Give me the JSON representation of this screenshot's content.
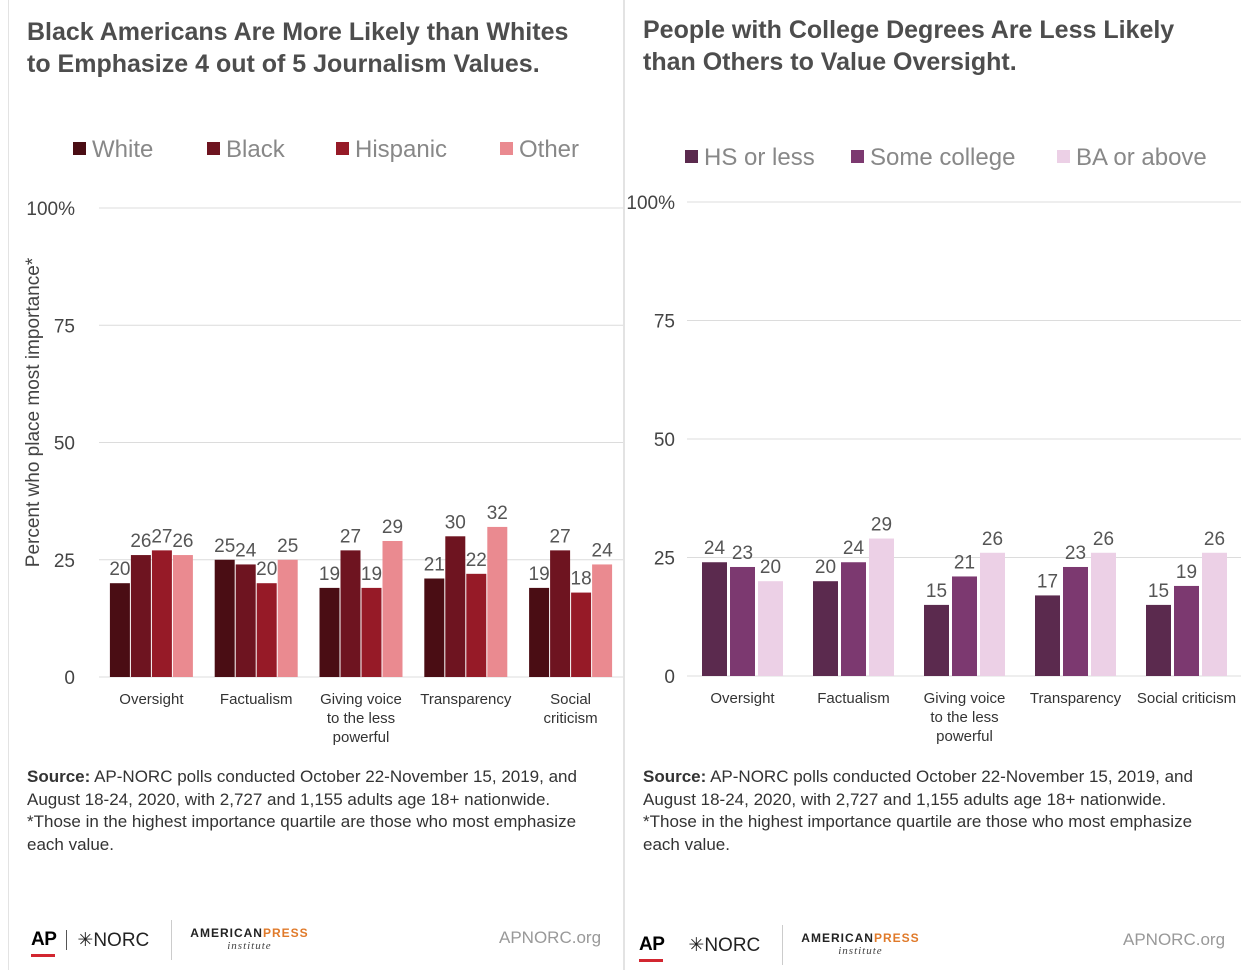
{
  "charts": [
    {
      "title_line1": "Black Americans Are More Likely than Whites",
      "title_line2": "to Emphasize 4 out of 5 Journalism Values.",
      "source_label": "Source:",
      "source_text": " AP-NORC polls conducted October 22-November 15, 2019, and August 18-24, 2020, with 2,727 and 1,155 adults age 18+ nationwide.",
      "footnote": "*Those in the highest importance quartile are those who most emphasize each value.",
      "footer": {
        "ap": "AP",
        "norc": "NORC",
        "api_1": "AMERICAN",
        "api_2": "PRESS",
        "api_3": "institute",
        "url": "APNORC.org"
      }
    },
    {
      "title_line1": "People with College Degrees Are Less Likely",
      "title_line2": "than Others to Value Oversight.",
      "source_label": "Source:",
      "source_text": " AP-NORC polls conducted October 22-November 15, 2019, and August 18-24, 2020, with 2,727 and 1,155 adults age 18+ nationwide.",
      "footnote": "*Those in the highest importance quartile are those who most emphasize each value.",
      "footer": {
        "ap": "AP",
        "norc": "NORC",
        "api_1": "AMERICAN",
        "api_2": "PRESS",
        "api_3": "institute",
        "url": "APNORC.org"
      }
    }
  ],
  "chart_data": [
    {
      "type": "bar",
      "title": "Black Americans Are More Likely than Whites to Emphasize 4 out of 5 Journalism Values.",
      "categories": [
        [
          "Oversight"
        ],
        [
          "Factualism"
        ],
        [
          "Giving voice",
          "to the less",
          "powerful"
        ],
        [
          "Transparency"
        ],
        [
          "Social",
          "criticism"
        ]
      ],
      "series": [
        {
          "name": "White",
          "color": "#4a0d14",
          "values": [
            20,
            25,
            19,
            21,
            19
          ]
        },
        {
          "name": "Black",
          "color": "#6e1420",
          "values": [
            26,
            24,
            27,
            30,
            27
          ]
        },
        {
          "name": "Hispanic",
          "color": "#961a27",
          "values": [
            27,
            20,
            19,
            22,
            18
          ]
        },
        {
          "name": "Other",
          "color": "#ea8a90",
          "values": [
            26,
            25,
            29,
            32,
            24
          ]
        }
      ],
      "ylabel": "Percent who place most importance*",
      "ylim": [
        0,
        100
      ],
      "yticks": [
        "0",
        "25",
        "50",
        "75",
        "100%"
      ],
      "legend": "top",
      "grid": true
    },
    {
      "type": "bar",
      "title": "People with College Degrees Are Less Likely than Others to Value Oversight.",
      "categories": [
        [
          "Oversight"
        ],
        [
          "Factualism"
        ],
        [
          "Giving voice",
          "to the less",
          "powerful"
        ],
        [
          "Transparency"
        ],
        [
          "Social criticism"
        ]
      ],
      "series": [
        {
          "name": "HS or less",
          "color": "#5b2a4e",
          "values": [
            24,
            20,
            15,
            17,
            15
          ]
        },
        {
          "name": "Some college",
          "color": "#7c3970",
          "values": [
            23,
            24,
            21,
            23,
            19
          ]
        },
        {
          "name": "BA or above",
          "color": "#ecd0e6",
          "values": [
            20,
            29,
            26,
            26,
            26
          ]
        }
      ],
      "ylabel": "",
      "ylim": [
        0,
        100
      ],
      "yticks": [
        "0",
        "25",
        "50",
        "75",
        "100%"
      ],
      "legend": "top",
      "grid": true
    }
  ]
}
